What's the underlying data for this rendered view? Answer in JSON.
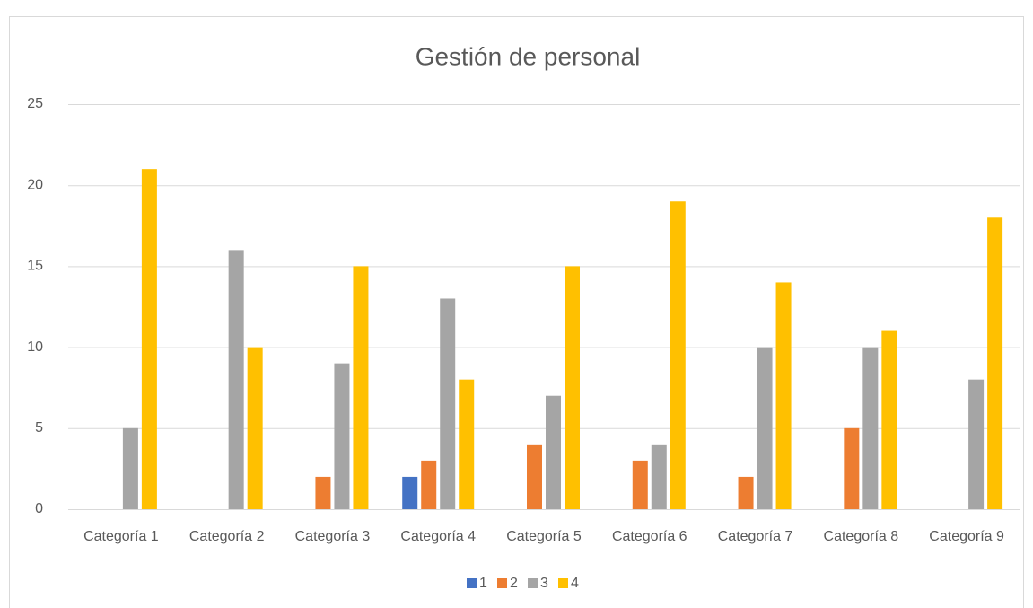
{
  "chart_data": {
    "type": "bar",
    "title": "Gestión de personal",
    "categories": [
      "Categoría 1",
      "Categoría 2",
      "Categoría 3",
      "Categoría 4",
      "Categoría 5",
      "Categoría 6",
      "Categoría 7",
      "Categoría 8",
      "Categoría 9"
    ],
    "series": [
      {
        "name": "1",
        "color": "#4472c4",
        "values": [
          0,
          0,
          0,
          2,
          0,
          0,
          0,
          0,
          0
        ]
      },
      {
        "name": "2",
        "color": "#ed7d31",
        "values": [
          0,
          0,
          2,
          3,
          4,
          3,
          2,
          5,
          0
        ]
      },
      {
        "name": "3",
        "color": "#a5a5a5",
        "values": [
          5,
          16,
          9,
          13,
          7,
          4,
          10,
          10,
          8
        ]
      },
      {
        "name": "4",
        "color": "#ffc000",
        "values": [
          21,
          10,
          15,
          8,
          15,
          19,
          14,
          11,
          18
        ]
      }
    ],
    "ylim": [
      0,
      25
    ],
    "yticks": [
      0,
      5,
      10,
      15,
      20,
      25
    ],
    "grid": true,
    "legend": "bottom"
  }
}
